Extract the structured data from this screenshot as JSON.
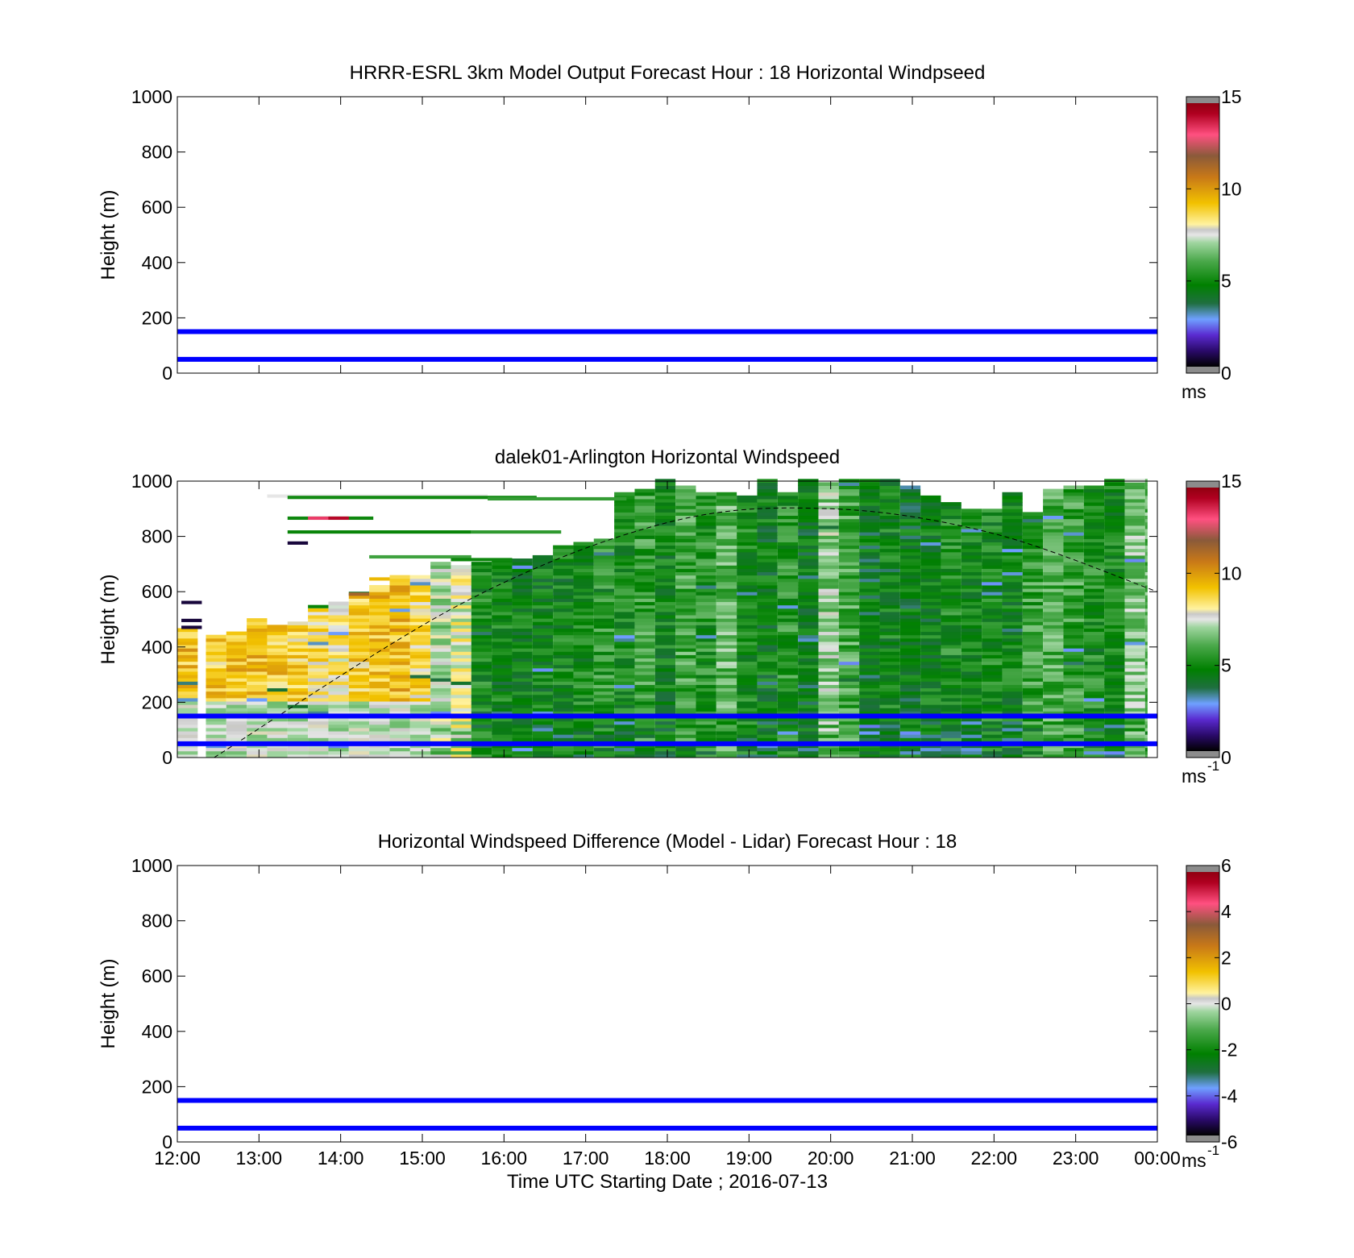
{
  "chart_data": [
    {
      "type": "heatmap",
      "title": "HRRR-ESRL 3km Model Output   Forecast Hour : 18 Horizontal Windpseed",
      "xlabel": "",
      "ylabel": "Height (m)",
      "xlim": [
        0,
        12
      ],
      "ylim": [
        0,
        1000
      ],
      "x_tick_labels": [],
      "y_ticks": [
        "0",
        "200",
        "400",
        "600",
        "800",
        "1000"
      ],
      "colorbar": {
        "range": [
          0,
          15
        ],
        "ticks": [
          "0",
          "5",
          "10",
          "15"
        ],
        "unit": "ms",
        "exponent": ""
      },
      "reference_lines_m": [
        50,
        150
      ],
      "reference_line_color": "#0000ff",
      "cells": [],
      "pbl_curve": []
    },
    {
      "type": "heatmap",
      "title": "dalek01-Arlington  Horizontal Windspeed",
      "xlabel": "",
      "ylabel": "Height (m)",
      "xlim": [
        0,
        12
      ],
      "ylim": [
        0,
        1000
      ],
      "x_tick_labels": [],
      "y_ticks": [
        "0",
        "200",
        "400",
        "600",
        "800",
        "1000"
      ],
      "colorbar": {
        "range": [
          0,
          15
        ],
        "ticks": [
          "0",
          "5",
          "10",
          "15"
        ],
        "unit": "ms",
        "exponent": "-1"
      },
      "reference_lines_m": [
        50,
        150
      ],
      "reference_line_color": "#0000ff",
      "columns": [
        {
          "t": 0.0,
          "top": 460,
          "core": 9.3
        },
        {
          "t": 0.35,
          "top": 440,
          "core": 9.0
        },
        {
          "t": 0.6,
          "top": 450,
          "core": 9.2
        },
        {
          "t": 0.85,
          "top": 500,
          "core": 9.4
        },
        {
          "t": 1.1,
          "top": 480,
          "core": 9.1
        },
        {
          "t": 1.35,
          "top": 490,
          "core": 8.8
        },
        {
          "t": 1.6,
          "top": 540,
          "core": 8.5
        },
        {
          "t": 1.85,
          "top": 560,
          "core": 8.3
        },
        {
          "t": 2.1,
          "top": 590,
          "core": 9.0
        },
        {
          "t": 2.35,
          "top": 620,
          "core": 9.3
        },
        {
          "t": 2.6,
          "top": 660,
          "core": 9.5
        },
        {
          "t": 2.85,
          "top": 650,
          "core": 8.6
        },
        {
          "t": 3.1,
          "top": 700,
          "core": 7.2
        },
        {
          "t": 3.35,
          "top": 690,
          "core": 7.8
        },
        {
          "t": 3.6,
          "top": 700,
          "core": 5.0
        },
        {
          "t": 3.85,
          "top": 720,
          "core": 4.8
        },
        {
          "t": 4.1,
          "top": 710,
          "core": 4.6
        },
        {
          "t": 4.35,
          "top": 730,
          "core": 4.7
        },
        {
          "t": 4.6,
          "top": 760,
          "core": 4.9
        },
        {
          "t": 4.85,
          "top": 770,
          "core": 5.0
        },
        {
          "t": 5.1,
          "top": 790,
          "core": 5.4
        },
        {
          "t": 5.35,
          "top": 960,
          "core": 4.9
        },
        {
          "t": 5.6,
          "top": 970,
          "core": 5.6
        },
        {
          "t": 5.85,
          "top": 1000,
          "core": 4.7
        },
        {
          "t": 6.1,
          "top": 980,
          "core": 5.8
        },
        {
          "t": 6.35,
          "top": 950,
          "core": 5.2
        },
        {
          "t": 6.6,
          "top": 960,
          "core": 6.2
        },
        {
          "t": 6.85,
          "top": 940,
          "core": 5.0
        },
        {
          "t": 7.1,
          "top": 1000,
          "core": 4.6
        },
        {
          "t": 7.35,
          "top": 950,
          "core": 5.3
        },
        {
          "t": 7.6,
          "top": 1000,
          "core": 4.5
        },
        {
          "t": 7.85,
          "top": 990,
          "core": 6.8
        },
        {
          "t": 8.1,
          "top": 1000,
          "core": 5.9
        },
        {
          "t": 8.35,
          "top": 1000,
          "core": 4.3
        },
        {
          "t": 8.6,
          "top": 1000,
          "core": 4.8
        },
        {
          "t": 8.85,
          "top": 980,
          "core": 4.4
        },
        {
          "t": 9.1,
          "top": 940,
          "core": 4.6
        },
        {
          "t": 9.35,
          "top": 920,
          "core": 5.1
        },
        {
          "t": 9.6,
          "top": 900,
          "core": 4.7
        },
        {
          "t": 9.85,
          "top": 900,
          "core": 5.0
        },
        {
          "t": 10.1,
          "top": 960,
          "core": 4.8
        },
        {
          "t": 10.35,
          "top": 880,
          "core": 5.6
        },
        {
          "t": 10.6,
          "top": 970,
          "core": 6.0
        },
        {
          "t": 10.85,
          "top": 980,
          "core": 5.7
        },
        {
          "t": 11.1,
          "top": 980,
          "core": 5.2
        },
        {
          "t": 11.35,
          "top": 1000,
          "core": 4.9
        },
        {
          "t": 11.6,
          "top": 1000,
          "core": 6.5
        },
        {
          "t": 11.85,
          "top": 1000,
          "core": 6.2
        }
      ],
      "sparse_strips": [
        {
          "t0": 1.1,
          "t1": 3.8,
          "h": 940,
          "v": 7.5
        },
        {
          "t0": 1.35,
          "t1": 4.4,
          "h": 935,
          "v": 5.0
        },
        {
          "t0": 3.8,
          "t1": 5.5,
          "h": 930,
          "v": 5.6
        },
        {
          "t0": 1.35,
          "t1": 2.4,
          "h": 860,
          "v": 4.9
        },
        {
          "t0": 1.6,
          "t1": 1.85,
          "h": 860,
          "v": 13.5
        },
        {
          "t0": 1.85,
          "t1": 2.1,
          "h": 860,
          "v": 14.3
        },
        {
          "t0": 1.35,
          "t1": 3.6,
          "h": 810,
          "v": 4.8
        },
        {
          "t0": 3.6,
          "t1": 4.7,
          "h": 810,
          "v": 5.5
        },
        {
          "t0": 1.35,
          "t1": 1.6,
          "h": 770,
          "v": 0.5
        },
        {
          "t0": 2.35,
          "t1": 3.6,
          "h": 720,
          "v": 5.8
        },
        {
          "t0": 3.35,
          "t1": 4.1,
          "h": 710,
          "v": 4.9
        },
        {
          "t0": 0.05,
          "t1": 0.3,
          "h": 555,
          "v": 0.5
        },
        {
          "t0": 0.05,
          "t1": 0.3,
          "h": 490,
          "v": 0.5
        },
        {
          "t0": 0.05,
          "t1": 0.3,
          "h": 465,
          "v": 0.5
        },
        {
          "t0": 1.6,
          "t1": 1.85,
          "h": 540,
          "v": 4.8
        },
        {
          "t0": 2.1,
          "t1": 2.35,
          "h": 585,
          "v": 11.5
        },
        {
          "t0": 2.35,
          "t1": 2.6,
          "h": 640,
          "v": 9.5
        }
      ],
      "pbl_curve": [
        [
          0.45,
          0
        ],
        [
          3.5,
          560
        ],
        [
          6,
          850
        ],
        [
          8,
          900
        ],
        [
          10,
          810
        ],
        [
          12,
          600
        ]
      ]
    },
    {
      "type": "heatmap",
      "title": "Horizontal Windspeed Difference (Model - Lidar) Forecast Hour : 18",
      "xlabel": "Time UTC  Starting Date ; 2016-07-13",
      "ylabel": "Height (m)",
      "xlim": [
        0,
        12
      ],
      "ylim": [
        0,
        1000
      ],
      "x_tick_labels": [
        "12:00",
        "13:00",
        "14:00",
        "15:00",
        "16:00",
        "17:00",
        "18:00",
        "19:00",
        "20:00",
        "21:00",
        "22:00",
        "23:00",
        "00:00"
      ],
      "y_ticks": [
        "0",
        "200",
        "400",
        "600",
        "800",
        "1000"
      ],
      "colorbar": {
        "range": [
          -6,
          6
        ],
        "ticks": [
          "-6",
          "-4",
          "-2",
          "0",
          "2",
          "4",
          "6"
        ],
        "unit": "ms",
        "exponent": "-1"
      },
      "reference_lines_m": [
        50,
        150
      ],
      "reference_line_color": "#0000ff",
      "cells": [],
      "pbl_curve": []
    }
  ]
}
